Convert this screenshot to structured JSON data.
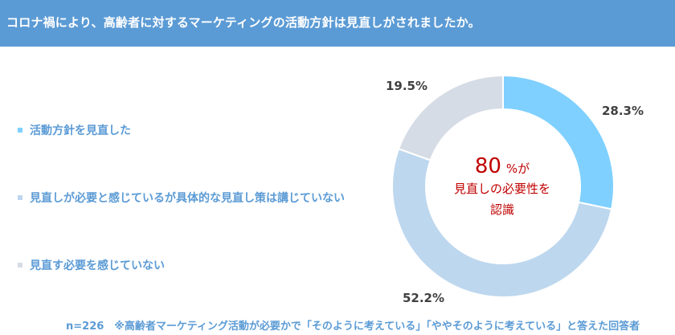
{
  "header": {
    "title": "コロナ禍により、高齢者に対するマーケティングの活動方針は見直しがされましたか。"
  },
  "chart_data": {
    "type": "pie",
    "title": "コロナ禍により、高齢者に対するマーケティングの活動方針は見直しがされましたか。",
    "categories": [
      "活動方針を見直した",
      "見直しが必要と感じているが具体的な見直し策は講じていない",
      "見直す必要を感じていない"
    ],
    "values": [
      28.3,
      52.2,
      19.5
    ],
    "value_labels": [
      "28.3%",
      "52.2%",
      "19.5%"
    ],
    "colors": [
      "#7fd0ff",
      "#bdd7ee",
      "#d6dce5"
    ],
    "donut": true,
    "legend_position": "left",
    "center": {
      "value": "80",
      "unit": "%が",
      "line2": "見直しの必要性を",
      "line3": "認識"
    }
  },
  "footnote": "n=226　※高齢者マーケティング活動が必要かで「そのように考えている」「ややそのように考えている」と答えた回答者"
}
